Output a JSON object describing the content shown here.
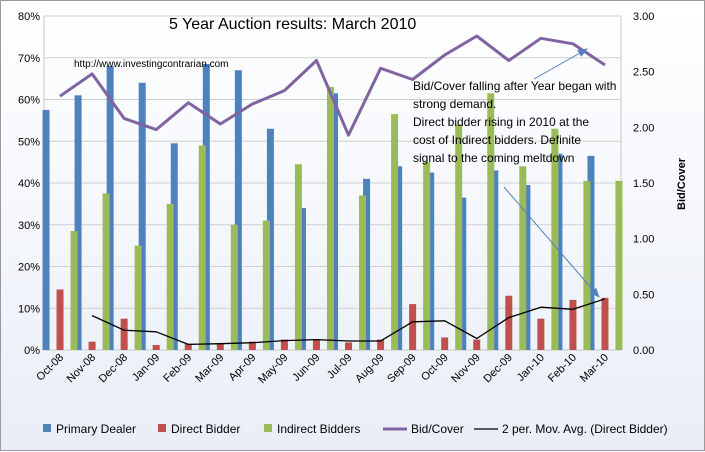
{
  "chart_data": {
    "type": "bar",
    "title": "5 Year Auction results: March 2010",
    "source_url": "http://www.investingcontrarian.com",
    "categories": [
      "Oct-08",
      "Nov-08",
      "Dec-08",
      "Jan-09",
      "Feb-09",
      "Mar-09",
      "Apr-09",
      "May-09",
      "Jun-09",
      "Jul-09",
      "Aug-09",
      "Sep-09",
      "Oct-09",
      "Nov-09",
      "Dec-09",
      "Jan-10",
      "Feb-10",
      "Mar-10"
    ],
    "y_left": {
      "ylim": [
        0,
        80
      ],
      "ticks": [
        "0%",
        "10%",
        "20%",
        "30%",
        "40%",
        "50%",
        "60%",
        "70%",
        "80%"
      ]
    },
    "y_right": {
      "label": "Bid/Cover",
      "ylim": [
        0,
        3
      ],
      "ticks": [
        "0.00",
        "0.50",
        "1.00",
        "1.50",
        "2.00",
        "2.50",
        "3.00"
      ]
    },
    "series": [
      {
        "name": "Primary Dealer",
        "kind": "bar",
        "axis": "left",
        "color": "#4f81bd",
        "values": [
          57.5,
          61,
          68,
          64,
          49.5,
          68.5,
          67,
          53,
          34,
          61.5,
          41,
          44,
          42.5,
          36.5,
          43,
          39.5,
          47,
          46.5
        ]
      },
      {
        "name": "Direct Bidder",
        "kind": "bar",
        "axis": "left",
        "color": "#c0504d",
        "values": [
          14.5,
          2,
          7.5,
          1.2,
          1.5,
          1.5,
          2,
          2.5,
          2.5,
          1.8,
          2.5,
          11,
          3,
          2.5,
          13,
          7.5,
          12,
          12.5
        ]
      },
      {
        "name": "Indirect Bidders",
        "kind": "bar",
        "axis": "left",
        "color": "#9bbb59",
        "values": [
          28.5,
          37.5,
          25,
          35,
          49,
          30,
          31,
          44.5,
          63,
          37,
          56.5,
          45,
          54,
          61.5,
          44,
          53,
          40.5,
          40.5
        ]
      },
      {
        "name": "Bid/Cover",
        "kind": "line",
        "axis": "right",
        "color": "#8064a2",
        "values": [
          2.28,
          2.48,
          2.08,
          1.98,
          2.22,
          2.03,
          2.21,
          2.33,
          2.6,
          1.93,
          2.53,
          2.43,
          2.65,
          2.82,
          2.6,
          2.8,
          2.75,
          2.56
        ]
      },
      {
        "name": "2 per. Mov. Avg. (Direct Bidder)",
        "kind": "line",
        "axis": "left",
        "color": "#000000",
        "values": [
          null,
          8.25,
          4.75,
          4.35,
          1.35,
          1.5,
          1.75,
          2.25,
          2.5,
          2.15,
          2.15,
          6.75,
          7,
          2.75,
          7.75,
          10.25,
          9.75,
          12.25
        ]
      }
    ],
    "annotation": [
      "Bid/Cover falling after Year began with",
      "strong demand.",
      "Direct bidder rising in 2010 at the",
      "cost of Indirect bidders. Definite",
      "signal to the coming meltdown"
    ],
    "legend_position": "bottom"
  }
}
